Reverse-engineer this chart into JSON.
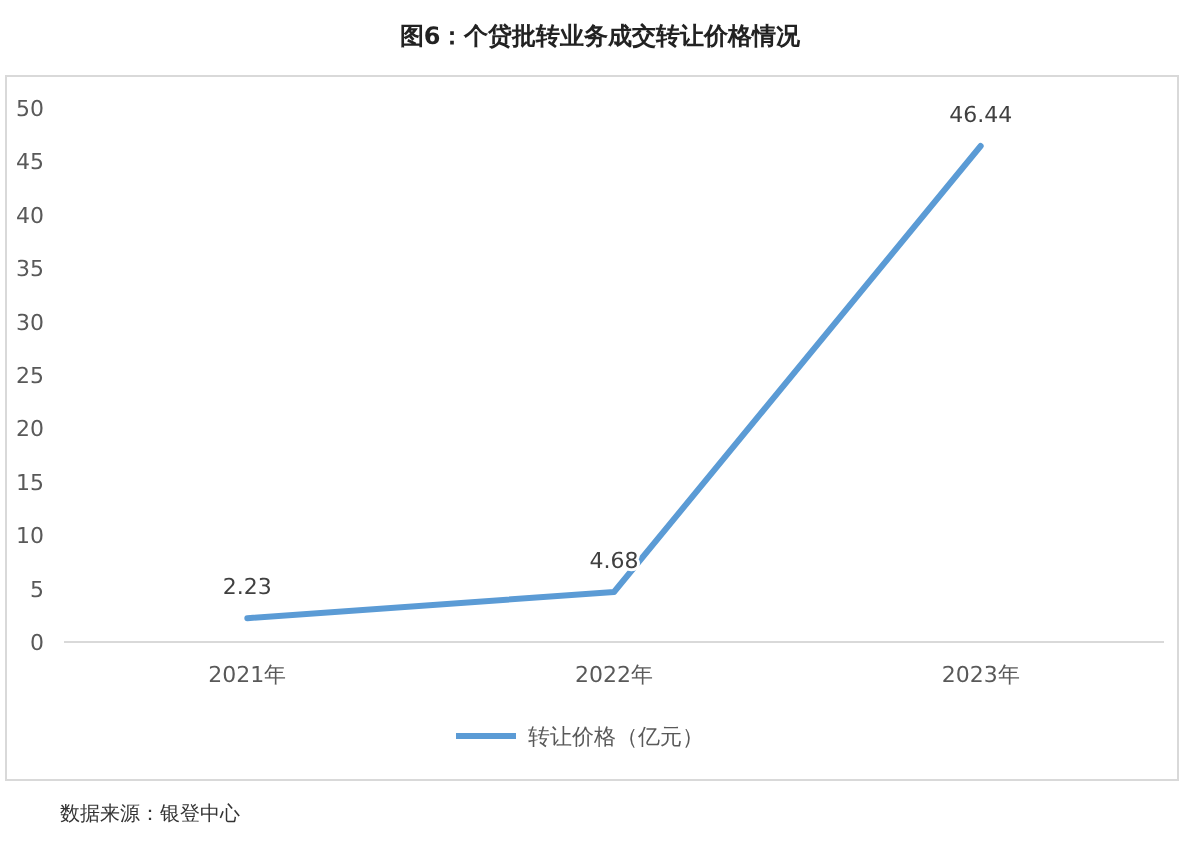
{
  "chart_data": {
    "type": "line",
    "title": "图6：个贷批转业务成交转让价格情况",
    "categories": [
      "2021年",
      "2022年",
      "2023年"
    ],
    "series": [
      {
        "name": "转让价格（亿元）",
        "color": "#5b9bd5",
        "values": [
          2.23,
          4.68,
          46.44
        ]
      }
    ],
    "ylim": [
      0,
      50
    ],
    "yticks": [
      0,
      5,
      10,
      15,
      20,
      25,
      30,
      35,
      40,
      45,
      50
    ],
    "grid": false,
    "legend": "bottom",
    "data_labels": true,
    "marker": "none",
    "line_style": "solid",
    "annotations": [
      "数据来源：银登中心"
    ]
  }
}
